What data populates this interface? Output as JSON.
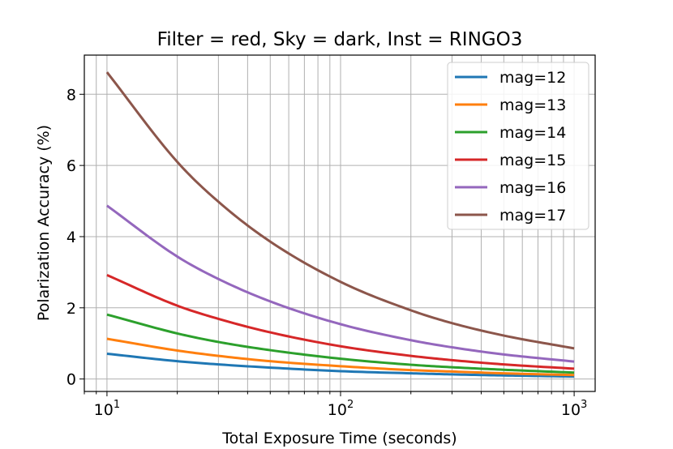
{
  "chart_data": {
    "type": "line",
    "title": "Filter = red, Sky = dark, Inst = RINGO3",
    "xlabel": "Total Exposure Time (seconds)",
    "ylabel": "Polarization Accuracy (%)",
    "xscale": "log",
    "xlim": [
      8.0,
      1230
    ],
    "ylim": [
      -0.35,
      9.1
    ],
    "grid": true,
    "legend": "top-right",
    "x_ticks": [
      {
        "value": 10,
        "base": "10",
        "exp": "1"
      },
      {
        "value": 100,
        "base": "10",
        "exp": "2"
      },
      {
        "value": 1000,
        "base": "10",
        "exp": "3"
      }
    ],
    "y_ticks": [
      {
        "value": 0,
        "label": "0"
      },
      {
        "value": 2,
        "label": "2"
      },
      {
        "value": 4,
        "label": "4"
      },
      {
        "value": 6,
        "label": "6"
      },
      {
        "value": 8,
        "label": "8"
      }
    ],
    "x": [
      10,
      20,
      30,
      50,
      100,
      200,
      300,
      500,
      1000
    ],
    "series": [
      {
        "name": "mag=12",
        "color": "#1f77b4",
        "values": [
          0.71,
          0.5,
          0.41,
          0.32,
          0.22,
          0.16,
          0.13,
          0.1,
          0.07
        ]
      },
      {
        "name": "mag=13",
        "color": "#ff7f0e",
        "values": [
          1.13,
          0.8,
          0.65,
          0.5,
          0.36,
          0.25,
          0.21,
          0.16,
          0.11
        ]
      },
      {
        "name": "mag=14",
        "color": "#2ca02c",
        "values": [
          1.81,
          1.28,
          1.04,
          0.81,
          0.57,
          0.4,
          0.33,
          0.26,
          0.18
        ]
      },
      {
        "name": "mag=15",
        "color": "#d62728",
        "values": [
          2.92,
          2.06,
          1.69,
          1.31,
          0.92,
          0.65,
          0.53,
          0.41,
          0.29
        ]
      },
      {
        "name": "mag=16",
        "color": "#9467bd",
        "values": [
          4.87,
          3.44,
          2.81,
          2.18,
          1.54,
          1.09,
          0.89,
          0.69,
          0.49
        ]
      },
      {
        "name": "mag=17",
        "color": "#8c564b",
        "values": [
          8.62,
          6.1,
          4.98,
          3.86,
          2.73,
          1.93,
          1.57,
          1.22,
          0.86
        ]
      }
    ]
  }
}
